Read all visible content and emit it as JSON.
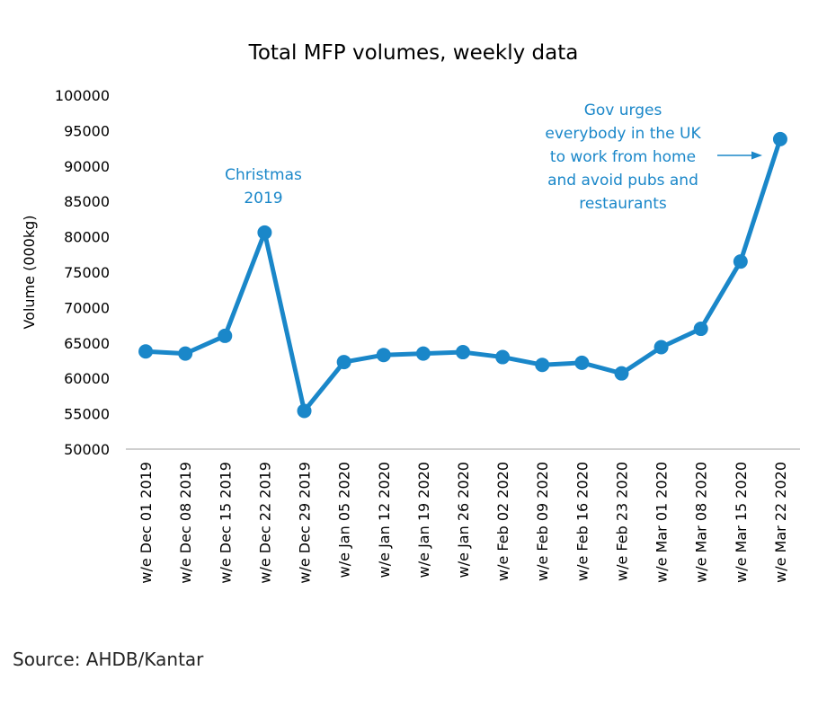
{
  "chart_data": {
    "type": "line",
    "title": "Total MFP volumes, weekly data",
    "xlabel": "",
    "ylabel": "Volume (000kg)",
    "ylim": [
      50000,
      100000
    ],
    "yticks": [
      50000,
      55000,
      60000,
      65000,
      70000,
      75000,
      80000,
      85000,
      90000,
      95000,
      100000
    ],
    "grid": false,
    "legend": "none",
    "categories": [
      "w/e Dec 01 2019",
      "w/e Dec 08 2019",
      "w/e Dec 15 2019",
      "w/e Dec 22 2019",
      "w/e Dec 29 2019",
      "w/e Jan 05 2020",
      "w/e Jan 12 2020",
      "w/e Jan 19 2020",
      "w/e Jan 26 2020",
      "w/e Feb 02 2020",
      "w/e Feb 09 2020",
      "w/e Feb 16 2020",
      "w/e Feb 23 2020",
      "w/e Mar 01 2020",
      "w/e Mar 08 2020",
      "w/e Mar 15 2020",
      "w/e Mar 22 2020"
    ],
    "series": [
      {
        "values": [
          63800,
          63500,
          66000,
          80600,
          55400,
          62300,
          63300,
          63500,
          63700,
          63000,
          61900,
          62200,
          60700,
          64400,
          67000,
          76500,
          93800
        ]
      }
    ],
    "annotations": [
      {
        "lines": [
          "Christmas",
          "2019"
        ]
      },
      {
        "lines": [
          "Gov urges",
          "everybody  in the UK",
          "to work from home",
          "and avoid pubs and",
          "restaurants"
        ]
      }
    ]
  },
  "colors": {
    "series": "#1a87c9",
    "annotation": "#1a87c9",
    "axis": "#bfbfbf"
  },
  "source": "Source: AHDB/Kantar"
}
